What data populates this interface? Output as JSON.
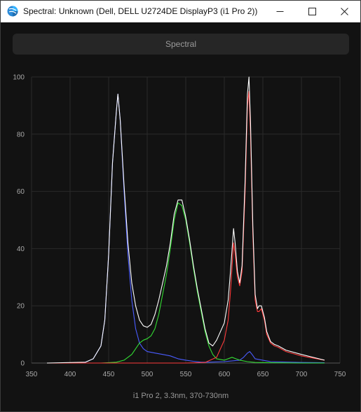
{
  "window": {
    "title": "Spectral: Unknown (Dell, DELL U2724DE DisplayP3 (i1 Pro 2))",
    "icon": "app-colorwheel-icon",
    "controls": [
      "minimize-icon",
      "maximize-icon",
      "close-icon"
    ]
  },
  "toolbar": {
    "spectral_label": "Spectral"
  },
  "chart_data": {
    "type": "line",
    "caption": "i1 Pro 2, 3.3nm, 370-730nm",
    "xlim": [
      350,
      750
    ],
    "ylim": [
      0,
      100
    ],
    "x_ticks": [
      350,
      400,
      450,
      500,
      550,
      600,
      650,
      700,
      750
    ],
    "y_ticks": [
      0,
      20,
      40,
      60,
      80,
      100
    ],
    "grid": true,
    "colors": {
      "white": "#ffffff",
      "red": "#ff3b3b",
      "green": "#33dd33",
      "blue": "#4a5cff"
    },
    "series": [
      {
        "color": "#4a5cff",
        "x": [
          370,
          400,
          420,
          430,
          440,
          445,
          450,
          455,
          460,
          462,
          465,
          470,
          475,
          480,
          485,
          490,
          495,
          500,
          510,
          520,
          530,
          540,
          550,
          560,
          570,
          580,
          600,
          620,
          625,
          630,
          633,
          636,
          640,
          660,
          700,
          730
        ],
        "y": [
          0,
          0,
          0.3,
          1.5,
          6,
          15,
          38,
          70,
          88,
          94,
          85,
          60,
          38,
          22,
          12,
          7,
          5,
          4,
          3.5,
          3,
          2.5,
          1.5,
          1,
          0.6,
          0.3,
          0.3,
          0.5,
          1,
          2,
          3.5,
          4,
          3,
          1.5,
          0.5,
          0.2,
          0.1
        ]
      },
      {
        "color": "#33dd33",
        "x": [
          370,
          440,
          460,
          470,
          480,
          485,
          490,
          495,
          500,
          505,
          510,
          515,
          520,
          525,
          530,
          535,
          540,
          545,
          550,
          555,
          560,
          565,
          570,
          575,
          580,
          585,
          590,
          600,
          610,
          615,
          620,
          630,
          640,
          700,
          730
        ],
        "y": [
          0,
          0,
          0.3,
          1,
          3,
          5,
          7,
          8,
          8.5,
          9.5,
          12,
          17,
          24,
          31,
          40,
          50,
          56,
          55,
          50,
          42,
          33,
          25,
          18,
          11,
          6,
          3,
          1.5,
          1,
          2,
          1.5,
          1,
          0.5,
          0.2,
          0,
          0
        ]
      },
      {
        "color": "#ff3b3b",
        "x": [
          370,
          550,
          575,
          590,
          600,
          605,
          608,
          612,
          614,
          617,
          620,
          623,
          627,
          630,
          632,
          634,
          637,
          640,
          643,
          645,
          648,
          652,
          655,
          660,
          665,
          670,
          680,
          700,
          730
        ],
        "y": [
          0,
          0,
          0.2,
          2,
          8,
          15,
          25,
          42,
          38,
          30,
          27,
          32,
          60,
          90,
          95,
          80,
          45,
          22,
          18,
          18,
          19,
          15,
          10,
          7,
          6,
          5.5,
          4,
          2.5,
          1
        ]
      },
      {
        "color": "#ffffff",
        "x": [
          370,
          420,
          430,
          440,
          445,
          450,
          455,
          460,
          462,
          465,
          470,
          475,
          480,
          485,
          490,
          495,
          500,
          505,
          510,
          515,
          520,
          525,
          530,
          535,
          540,
          545,
          550,
          555,
          560,
          565,
          570,
          575,
          580,
          585,
          590,
          600,
          605,
          608,
          612,
          614,
          617,
          620,
          623,
          627,
          630,
          632,
          634,
          637,
          640,
          643,
          645,
          648,
          652,
          655,
          660,
          665,
          670,
          680,
          700,
          730
        ],
        "y": [
          0,
          0.3,
          1.5,
          6,
          15,
          38,
          70,
          88,
          94,
          85,
          62,
          42,
          28,
          20,
          15,
          13,
          12.5,
          13.5,
          17,
          22,
          28,
          34,
          42,
          52,
          57,
          57,
          51,
          43,
          34,
          26,
          19,
          12,
          7,
          6,
          8,
          14,
          22,
          32,
          47,
          42,
          32,
          28,
          34,
          64,
          94,
          100,
          84,
          48,
          24,
          19,
          20,
          20,
          16,
          11,
          7.5,
          6.5,
          6,
          4.5,
          3,
          1
        ]
      }
    ]
  }
}
